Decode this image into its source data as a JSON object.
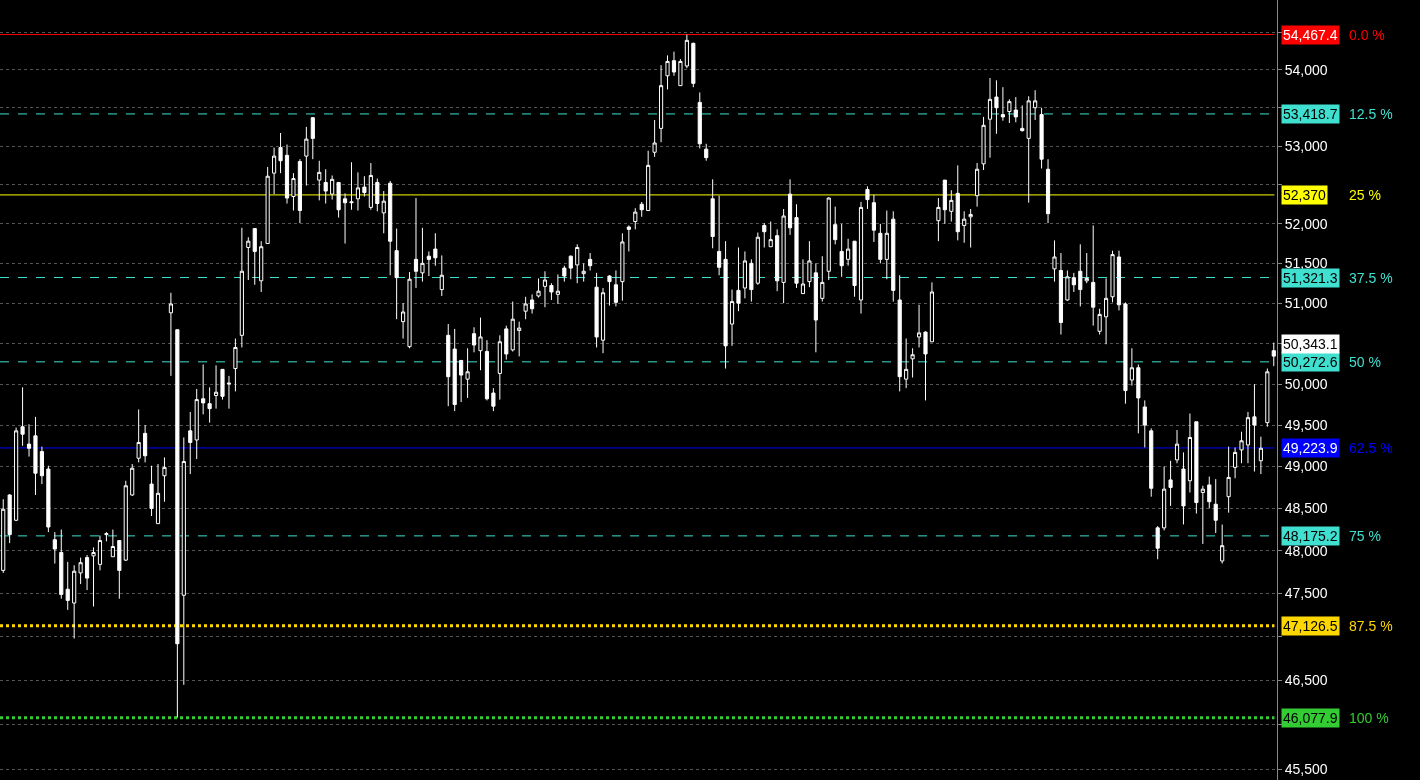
{
  "chart_data": {
    "type": "candlestick",
    "color": "#ffffff",
    "categories": [
      null,
      null,
      null,
      null,
      null,
      null,
      null,
      null,
      null,
      null,
      null,
      null,
      null,
      null,
      null,
      null,
      null,
      null,
      null,
      null,
      null,
      null,
      null,
      null,
      null,
      null,
      null,
      null,
      null,
      null,
      null,
      null,
      null,
      null,
      null,
      null,
      null,
      null,
      null,
      null,
      null,
      null,
      null,
      null,
      null,
      null,
      null,
      null,
      null,
      null,
      null,
      null,
      null,
      null,
      null,
      null,
      null,
      null,
      null,
      null,
      null,
      null,
      null,
      null,
      null,
      null,
      null,
      null,
      null,
      null,
      null,
      null,
      null,
      null,
      null,
      null,
      null,
      null,
      null,
      null,
      null,
      null,
      null,
      null,
      null,
      null,
      null,
      null,
      null,
      null,
      null,
      null,
      null,
      null,
      null,
      null,
      null,
      null,
      null,
      null,
      null,
      null,
      null,
      null,
      null,
      null,
      null,
      null,
      null,
      null,
      null,
      null,
      null,
      null,
      null,
      null,
      null,
      null,
      null,
      null,
      null,
      null,
      null,
      null,
      null,
      null,
      null,
      null,
      null,
      null,
      null,
      null,
      null,
      null,
      null,
      null,
      null,
      null,
      null,
      null,
      null,
      null,
      null,
      null,
      null,
      null,
      null,
      null,
      null,
      null,
      null,
      null,
      null,
      null,
      null,
      null,
      null,
      null,
      null,
      null,
      null,
      null,
      null,
      null,
      null,
      null,
      null,
      null,
      null,
      null,
      null,
      null,
      null,
      null,
      null,
      null,
      null,
      null,
      null,
      null,
      null,
      null,
      null,
      null,
      null,
      null,
      null,
      null,
      null,
      null,
      null,
      null,
      null,
      null,
      null,
      null,
      null,
      null
    ],
    "ohlc": [
      [
        47770,
        48610,
        47740,
        48490
      ],
      [
        48660,
        48670,
        48090,
        48190
      ],
      [
        48360,
        49470,
        48350,
        49430
      ],
      [
        49480,
        49960,
        49250,
        49390
      ],
      [
        49270,
        49510,
        49120,
        49220
      ],
      [
        49370,
        49600,
        48660,
        48920
      ],
      [
        49180,
        49240,
        48790,
        48890
      ],
      [
        48970,
        49010,
        48220,
        48280
      ],
      [
        48130,
        48220,
        47850,
        48020
      ],
      [
        47980,
        48250,
        47440,
        47490
      ],
      [
        47550,
        47870,
        47310,
        47420
      ],
      [
        47390,
        47830,
        46980,
        47760
      ],
      [
        47740,
        47920,
        47610,
        47860
      ],
      [
        47920,
        47950,
        47540,
        47680
      ],
      [
        47940,
        48040,
        47350,
        47980
      ],
      [
        47840,
        48180,
        47770,
        48120
      ],
      [
        48190,
        48220,
        48110,
        48200
      ],
      [
        47930,
        48250,
        47930,
        48050
      ],
      [
        48120,
        48120,
        47440,
        47770
      ],
      [
        47890,
        48830,
        47880,
        48770
      ],
      [
        48660,
        49030,
        48650,
        48980
      ],
      [
        49100,
        49690,
        49050,
        49290
      ],
      [
        49400,
        49500,
        49050,
        49130
      ],
      [
        48790,
        49010,
        48410,
        48500
      ],
      [
        48320,
        49030,
        48320,
        48680
      ],
      [
        48890,
        49110,
        48580,
        48990
      ],
      [
        50880,
        51130,
        50100,
        50990
      ],
      [
        50670,
        50670,
        46077.9,
        46920
      ],
      [
        47480,
        49350,
        46450,
        49060
      ],
      [
        49430,
        49660,
        48910,
        49290
      ],
      [
        49320,
        49940,
        49090,
        49810
      ],
      [
        49820,
        50240,
        49630,
        49770
      ],
      [
        49760,
        49960,
        49530,
        49700
      ],
      [
        49860,
        50230,
        49700,
        49900
      ],
      [
        50180,
        50180,
        49810,
        49850
      ],
      [
        50000,
        50100,
        49700,
        50010
      ],
      [
        50190,
        50560,
        49910,
        50450
      ],
      [
        50600,
        51950,
        50450,
        51400
      ],
      [
        51700,
        51830,
        51290,
        51780
      ],
      [
        51940,
        51940,
        51230,
        51650
      ],
      [
        51280,
        51780,
        51140,
        51710
      ],
      [
        51750,
        52730,
        51750,
        52610
      ],
      [
        52650,
        52980,
        52380,
        52870
      ],
      [
        52980,
        53170,
        52650,
        52810
      ],
      [
        52880,
        53020,
        52260,
        52330
      ],
      [
        52350,
        52650,
        52170,
        52580
      ],
      [
        52800,
        52830,
        52010,
        52170
      ],
      [
        52870,
        53250,
        52490,
        53090
      ],
      [
        53370,
        53370,
        52830,
        53100
      ],
      [
        52560,
        52810,
        52300,
        52660
      ],
      [
        52530,
        52700,
        52260,
        52420
      ],
      [
        52380,
        52620,
        52310,
        52570
      ],
      [
        52530,
        52530,
        52080,
        52180
      ],
      [
        52320,
        52390,
        51750,
        52270
      ],
      [
        52270,
        52790,
        52180,
        52280
      ],
      [
        52320,
        52660,
        52170,
        52460
      ],
      [
        52470,
        52610,
        52350,
        52400
      ],
      [
        52210,
        52780,
        52180,
        52620
      ],
      [
        52530,
        52580,
        52160,
        52260
      ],
      [
        52140,
        52420,
        51880,
        52290
      ],
      [
        52520,
        52550,
        51350,
        51780
      ],
      [
        51660,
        51940,
        50800,
        51320
      ],
      [
        50770,
        51000,
        50560,
        50890
      ],
      [
        50460,
        51390,
        50440,
        51300
      ],
      [
        51550,
        52330,
        51190,
        51400
      ],
      [
        51380,
        51950,
        51270,
        51500
      ],
      [
        51590,
        51650,
        51340,
        51550
      ],
      [
        51680,
        51880,
        51470,
        51570
      ],
      [
        51170,
        51600,
        51090,
        51350
      ],
      [
        50600,
        50740,
        49730,
        50090
      ],
      [
        50430,
        50680,
        49670,
        49750
      ],
      [
        50290,
        50290,
        49780,
        50110
      ],
      [
        50060,
        50440,
        49830,
        50150
      ],
      [
        50620,
        50700,
        50390,
        50480
      ],
      [
        50410,
        50820,
        50170,
        50580
      ],
      [
        50400,
        50540,
        49800,
        49820
      ],
      [
        49890,
        49950,
        49670,
        49730
      ],
      [
        50130,
        50600,
        49810,
        50520
      ],
      [
        50680,
        50720,
        50300,
        50370
      ],
      [
        50420,
        51020,
        50400,
        50800
      ],
      [
        50660,
        50770,
        50340,
        50690
      ],
      [
        50900,
        51080,
        50800,
        50990
      ],
      [
        51040,
        51110,
        50870,
        50930
      ],
      [
        51090,
        51310,
        51070,
        51150
      ],
      [
        51210,
        51400,
        50950,
        51290
      ],
      [
        51220,
        51250,
        51040,
        51140
      ],
      [
        51110,
        51360,
        50990,
        51150
      ],
      [
        51440,
        51470,
        51270,
        51340
      ],
      [
        51590,
        51600,
        51300,
        51440
      ],
      [
        51480,
        51740,
        51250,
        51700
      ],
      [
        51370,
        51500,
        51270,
        51400
      ],
      [
        51550,
        51630,
        51410,
        51470
      ],
      [
        51200,
        51380,
        50450,
        50580
      ],
      [
        50540,
        51190,
        50380,
        51130
      ],
      [
        51340,
        51350,
        50970,
        51270
      ],
      [
        51230,
        51410,
        50960,
        51010
      ],
      [
        51270,
        51880,
        51030,
        51770
      ],
      [
        51960,
        51980,
        51650,
        51930
      ],
      [
        52030,
        52200,
        51930,
        52150
      ],
      [
        52250,
        52280,
        52090,
        52180
      ],
      [
        52170,
        52940,
        52170,
        52750
      ],
      [
        52920,
        53340,
        52860,
        53040
      ],
      [
        53230,
        54060,
        53050,
        53790
      ],
      [
        53920,
        54190,
        53740,
        54110
      ],
      [
        54120,
        54240,
        53920,
        53970
      ],
      [
        53790,
        54140,
        53790,
        54110
      ],
      [
        54050,
        54467.4,
        54020,
        54390
      ],
      [
        54350,
        54360,
        53770,
        53820
      ],
      [
        53570,
        53700,
        52970,
        53030
      ],
      [
        52960,
        53030,
        52810,
        52850
      ],
      [
        52320,
        52570,
        51690,
        51840
      ],
      [
        51650,
        52360,
        51350,
        51450
      ],
      [
        51550,
        51780,
        50190,
        50470
      ],
      [
        50740,
        51170,
        50470,
        51020
      ],
      [
        51160,
        51700,
        50900,
        51000
      ],
      [
        51190,
        51650,
        51060,
        51530
      ],
      [
        51500,
        51550,
        51020,
        51170
      ],
      [
        51250,
        51890,
        51230,
        51830
      ],
      [
        51980,
        52010,
        51700,
        51900
      ],
      [
        51710,
        52030,
        51710,
        51800
      ],
      [
        51850,
        51930,
        51150,
        51280
      ],
      [
        51260,
        52190,
        51000,
        52100
      ],
      [
        52380,
        52570,
        51860,
        51950
      ],
      [
        52080,
        52250,
        51190,
        51250
      ],
      [
        51120,
        51550,
        51120,
        51240
      ],
      [
        51270,
        51780,
        51200,
        51530
      ],
      [
        51380,
        51500,
        50390,
        50790
      ],
      [
        51060,
        51590,
        51020,
        51260
      ],
      [
        51400,
        52340,
        51290,
        52330
      ],
      [
        51990,
        52220,
        51740,
        51800
      ],
      [
        51650,
        52000,
        51330,
        51470
      ],
      [
        51550,
        51810,
        51470,
        51680
      ],
      [
        51780,
        51780,
        51080,
        51220
      ],
      [
        51040,
        52280,
        50870,
        52210
      ],
      [
        52440,
        52480,
        52190,
        52310
      ],
      [
        52270,
        52370,
        51770,
        51920
      ],
      [
        51880,
        52000,
        51500,
        51550
      ],
      [
        51550,
        52170,
        51300,
        51880
      ],
      [
        52060,
        52160,
        51020,
        51160
      ],
      [
        51040,
        51350,
        49910,
        50090
      ],
      [
        50060,
        50560,
        49950,
        50180
      ],
      [
        50310,
        50440,
        50080,
        50360
      ],
      [
        50580,
        50980,
        50450,
        50630
      ],
      [
        50640,
        50650,
        49800,
        50370
      ],
      [
        50520,
        51260,
        50520,
        51140
      ],
      [
        52040,
        52330,
        51780,
        52210
      ],
      [
        52560,
        52560,
        52000,
        52180
      ],
      [
        52160,
        52430,
        52030,
        52300
      ],
      [
        52390,
        52750,
        51790,
        51900
      ],
      [
        51980,
        52160,
        51760,
        52060
      ],
      [
        52090,
        52190,
        51700,
        52120
      ],
      [
        52360,
        52780,
        52220,
        52700
      ],
      [
        52770,
        53380,
        52690,
        53270
      ],
      [
        53350,
        53890,
        52850,
        53610
      ],
      [
        53640,
        53860,
        53160,
        53500
      ],
      [
        53410,
        53770,
        53330,
        53380
      ],
      [
        53450,
        53610,
        53300,
        53580
      ],
      [
        53470,
        53640,
        53310,
        53380
      ],
      [
        53230,
        53530,
        53190,
        53200
      ],
      [
        53100,
        53650,
        52270,
        53590
      ],
      [
        53500,
        53730,
        53340,
        53590
      ],
      [
        53410,
        53500,
        52710,
        52830
      ],
      [
        52700,
        52830,
        52010,
        52130
      ],
      [
        51430,
        51790,
        51270,
        51580
      ],
      [
        51410,
        51630,
        50610,
        50760
      ],
      [
        51040,
        51410,
        51030,
        51330
      ],
      [
        51320,
        51380,
        51140,
        51230
      ],
      [
        51400,
        51740,
        50960,
        51170
      ],
      [
        51280,
        51630,
        51250,
        51310
      ],
      [
        51260,
        51980,
        50720,
        50950
      ],
      [
        50650,
        50930,
        50610,
        50860
      ],
      [
        50830,
        51310,
        50490,
        51060
      ],
      [
        51080,
        51660,
        51010,
        51610
      ],
      [
        51580,
        51660,
        50910,
        50980
      ],
      [
        50990,
        51010,
        49760,
        49920
      ],
      [
        50050,
        50440,
        49980,
        50200
      ],
      [
        50200,
        50240,
        49400,
        49830
      ],
      [
        49720,
        49800,
        49230,
        49500
      ],
      [
        49430,
        49460,
        48640,
        48740
      ],
      [
        48270,
        48290,
        47900,
        48030
      ],
      [
        48270,
        49000,
        48240,
        48730
      ],
      [
        48840,
        49070,
        48530,
        48750
      ],
      [
        49080,
        49440,
        49040,
        49270
      ],
      [
        48970,
        49170,
        48310,
        48530
      ],
      [
        48830,
        49640,
        48690,
        49350
      ],
      [
        49540,
        49540,
        48440,
        48570
      ],
      [
        48690,
        48770,
        48080,
        48730
      ],
      [
        48780,
        48880,
        48500,
        48580
      ],
      [
        48550,
        48850,
        48210,
        48360
      ],
      [
        47880,
        48310,
        47850,
        48060
      ],
      [
        48640,
        49240,
        48450,
        48870
      ],
      [
        48990,
        49230,
        48860,
        49170
      ],
      [
        49200,
        49420,
        49040,
        49310
      ],
      [
        49260,
        49660,
        49040,
        49590
      ],
      [
        49600,
        50000,
        48940,
        49500
      ],
      [
        49070,
        49360,
        48910,
        49220
      ],
      [
        49530,
        50190,
        49480,
        50150
      ],
      [
        50410,
        50510,
        50220,
        50343.1
      ]
    ],
    "log": true,
    "ylim": [
      45380,
      54930
    ],
    "yticks": [
      {
        "value": 45500,
        "label": "45,500"
      },
      {
        "value": 46000,
        "label": null
      },
      {
        "value": 46500,
        "label": "46,500"
      },
      {
        "value": 47000,
        "label": null
      },
      {
        "value": 47500,
        "label": "47,500"
      },
      {
        "value": 48000,
        "label": "48,000"
      },
      {
        "value": 48500,
        "label": "48,500"
      },
      {
        "value": 49000,
        "label": "49,000"
      },
      {
        "value": 49500,
        "label": "49,500"
      },
      {
        "value": 50000,
        "label": "50,000"
      },
      {
        "value": 50500,
        "label": null
      },
      {
        "value": 51000,
        "label": "51,000"
      },
      {
        "value": 51500,
        "label": "51,500"
      },
      {
        "value": 52000,
        "label": "52,000"
      },
      {
        "value": 52500,
        "label": null
      },
      {
        "value": 53000,
        "label": "53,000"
      },
      {
        "value": 53500,
        "label": null
      },
      {
        "value": 54000,
        "label": "54,000"
      },
      {
        "value": 54500,
        "label": null
      }
    ],
    "grid": "y",
    "tick_labels": "y",
    "ref_lines": [
      {
        "axis": "y",
        "value": 54467.4,
        "label": "54,467.4",
        "color": "#ff0000",
        "line_style": "solid"
      },
      {
        "axis": "y",
        "value": 53418.7,
        "label": "53,418.7",
        "color": "#40e0d0",
        "line_style": "dashed"
      },
      {
        "axis": "y",
        "value": 52370,
        "label": "52,370",
        "color": "#ffff00",
        "line_style": "solid"
      },
      {
        "axis": "y",
        "value": 51321.3,
        "label": "51,321.3",
        "color": "#40e0d0",
        "line_style": "dashed"
      },
      {
        "axis": "y",
        "value": 50272.6,
        "label": "50,272.6",
        "color": "#40e0d0",
        "line_style": "dashed"
      },
      {
        "axis": "y",
        "value": 49223.9,
        "label": "49,223.9",
        "color": "#0000ff",
        "line_style": "solid"
      },
      {
        "axis": "y",
        "value": 48175.2,
        "label": "48,175.2",
        "color": "#40e0d0",
        "line_style": "dashed"
      },
      {
        "axis": "y",
        "value": 47126.5,
        "label": "47,126.5",
        "color": "#ffd700",
        "line_style": "dotted"
      },
      {
        "axis": "y",
        "value": 46077.9,
        "label": "46,077.9",
        "color": "#33cc33",
        "line_style": "dotted"
      }
    ],
    "annotations": [
      "0.0 %",
      "12.5 %",
      "25 %",
      "37.5 %",
      "50 %",
      "62.5 %",
      "75 %",
      "87.5 %",
      "100 %",
      "50,343.1"
    ]
  }
}
